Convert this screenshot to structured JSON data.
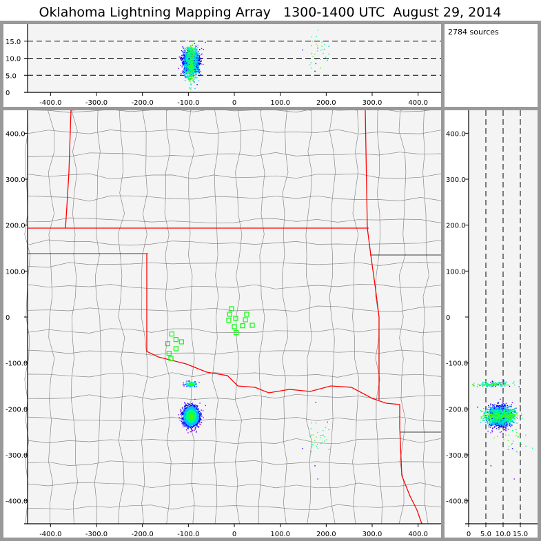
{
  "chart_data": {
    "type": "scatter",
    "title": "Oklahoma Lightning Mapping Array   1300-1400 UTC  August 29, 2014",
    "source_count_label": "2784 sources",
    "panels": {
      "plan_view": {
        "xlim": [
          -450,
          450
        ],
        "ylim": [
          -450,
          450
        ],
        "x_ticks": [
          "-400.0",
          "-300.0",
          "-200.0",
          "-100.0",
          "0",
          "100.0",
          "200.0",
          "300.0",
          "400.0"
        ],
        "y_ticks": [
          "400.0",
          "300.0",
          "200.0",
          "100.0",
          "0",
          "-100.0",
          "-200.0",
          "-300.0",
          "-400.0"
        ]
      },
      "east_west_altitude": {
        "xlim": [
          -450,
          450
        ],
        "ylim": [
          0,
          20
        ],
        "x_ticks": [
          "-400.0",
          "-300.0",
          "-200.0",
          "-100.0",
          "0",
          "100.0",
          "200.0",
          "300.0",
          "400.0"
        ],
        "y_ticks": [
          "15.0",
          "10.0",
          "5.0",
          "0"
        ],
        "dashed_gridlines": [
          5,
          10,
          15
        ]
      },
      "altitude_north_south": {
        "xlim": [
          0,
          20
        ],
        "ylim": [
          -450,
          450
        ],
        "x_ticks": [
          "0",
          "5.0",
          "10.0",
          "15.0"
        ],
        "y_ticks": [
          "400.0",
          "300.0",
          "200.0",
          "100.0",
          "0",
          "-100.0",
          "-200.0",
          "-300.0",
          "-400.0"
        ],
        "dashed_gridlines": [
          5,
          10,
          15
        ]
      }
    },
    "source_clusters": [
      {
        "x_km": -95,
        "y_km": -215,
        "alt_km": 9,
        "sx": 8,
        "sy": 10,
        "salt": 1.8,
        "count": 2600
      },
      {
        "x_km": -95,
        "y_km": -145,
        "alt_km": 7,
        "sx": 6,
        "sy": 3,
        "salt": 2.5,
        "count": 150
      },
      {
        "x_km": 180,
        "y_km": -255,
        "alt_km": 12,
        "sx": 15,
        "sy": 30,
        "salt": 3,
        "count": 34
      }
    ],
    "density_colors": [
      "#8000ff",
      "#0000ff",
      "#00c0ff",
      "#00ff80",
      "#40ff00"
    ],
    "stations": [
      [
        -6,
        18
      ],
      [
        -10,
        6
      ],
      [
        3,
        -3
      ],
      [
        -12,
        -7
      ],
      [
        27,
        6
      ],
      [
        24,
        -6
      ],
      [
        0,
        -21
      ],
      [
        18,
        -19
      ],
      [
        39,
        -18
      ],
      [
        4,
        -34
      ],
      [
        -136,
        -37
      ],
      [
        -127,
        -49
      ],
      [
        -145,
        -58
      ],
      [
        -115,
        -54
      ],
      [
        -127,
        -69
      ],
      [
        -142,
        -79
      ],
      [
        -138,
        -90
      ]
    ],
    "station_color": "#00ff00",
    "state_border_color": "#ff0000",
    "county_line_color": "#888888"
  }
}
